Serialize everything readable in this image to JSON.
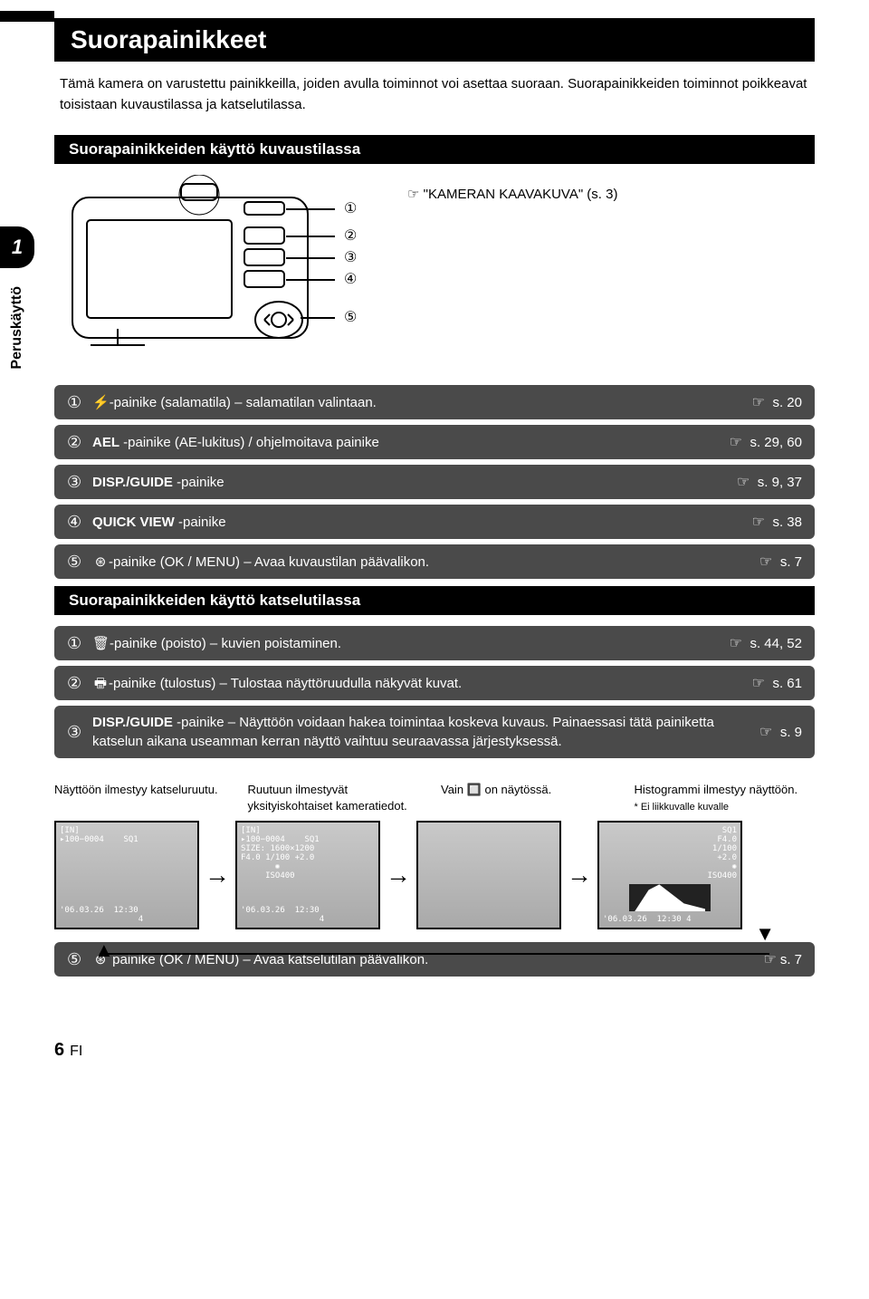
{
  "title": "Suorapainikkeet",
  "intro": "Tämä kamera on varustettu painikkeilla, joiden avulla toiminnot voi asettaa suoraan. Suorapainikkeiden toiminnot poikkeavat toisistaan kuvaustilassa ja katselutilassa.",
  "chapter": {
    "num": "1",
    "label": "Peruskäyttö"
  },
  "section1_title": "Suorapainikkeiden käyttö kuvaustilassa",
  "diagram_ref": "☞ \"KAMERAN KAAVAKUVA\" (s. 3)",
  "callouts": [
    "①",
    "②",
    "③",
    "④",
    "⑤"
  ],
  "hand": "☞",
  "rows_shoot": [
    {
      "n": "①",
      "icon": "⚡",
      "text": "-painike (salamatila) – salamatilan valintaan.",
      "ref": "s. 20"
    },
    {
      "n": "②",
      "icon": "",
      "bold": "AEL",
      "text": " -painike (AE-lukitus) / ohjelmoitava painike",
      "ref": "s. 29, 60"
    },
    {
      "n": "③",
      "icon": "",
      "bold": "DISP./GUIDE",
      "text": " -painike",
      "ref": "s. 9, 37"
    },
    {
      "n": "④",
      "icon": "",
      "bold": "QUICK VIEW",
      "text": " -painike",
      "ref": "s. 38"
    },
    {
      "n": "⑤",
      "icon": "⊛",
      "text": "-painike (OK / MENU) – Avaa kuvaustilan päävalikon.",
      "ref": "s. 7"
    }
  ],
  "section2_title": "Suorapainikkeiden käyttö katselutilassa",
  "rows_play": [
    {
      "n": "①",
      "icon": "🗑",
      "text": "-painike (poisto) – kuvien poistaminen.",
      "ref": "s. 44, 52"
    },
    {
      "n": "②",
      "icon": "🖶",
      "text": "-painike (tulostus) – Tulostaa näyttöruudulla näkyvät kuvat.",
      "ref": "s. 61"
    },
    {
      "n": "③",
      "icon": "",
      "bold": "DISP./GUIDE",
      "text": " -painike – Näyttöön voidaan hakea toimintaa koskeva kuvaus. Painaessasi tätä painiketta katselun aikana useamman kerran näyttö vaihtuu seuraavassa järjestyksessä.",
      "ref": "s. 9"
    }
  ],
  "footer_cols": [
    {
      "text": "Näyttöön ilmestyy katseluruutu."
    },
    {
      "text": "Ruutuun ilmestyvät yksityiskohtaiset kameratiedot."
    },
    {
      "text": "Vain 🔲 on näytössä."
    },
    {
      "text": "Histogrammi ilmestyy näyttöön.",
      "note": "* Ei liikkuvalle kuvalle"
    }
  ],
  "thumb1": {
    "top": "[IN]\n▸100−0004    SQ1",
    "bot": "'06.03.26  12:30\n                4"
  },
  "thumb2": {
    "top": "[IN]\n▸100−0004    SQ1\nSIZE: 1600×1200\nF4.0 1/100 +2.0\n       ✺\n     ISO400",
    "bot": "'06.03.26  12:30\n                4"
  },
  "thumb3": {
    "top": "",
    "bot": ""
  },
  "thumb4": {
    "top": "              SQ1\n             F4.0\n            1/100\n             +2.0\n               ✺\n           ISO400",
    "bot": "'06.03.26  12:30 4"
  },
  "row_final": {
    "n": "⑤",
    "icon": "⊛",
    "text": " painike (OK / MENU) – Avaa katselutilan päävalikon.",
    "ref": "s. 7"
  },
  "page_num": "6",
  "page_lang": "FI",
  "colors": {
    "black": "#000000",
    "rowbg": "#4a4a4a",
    "white": "#ffffff"
  }
}
